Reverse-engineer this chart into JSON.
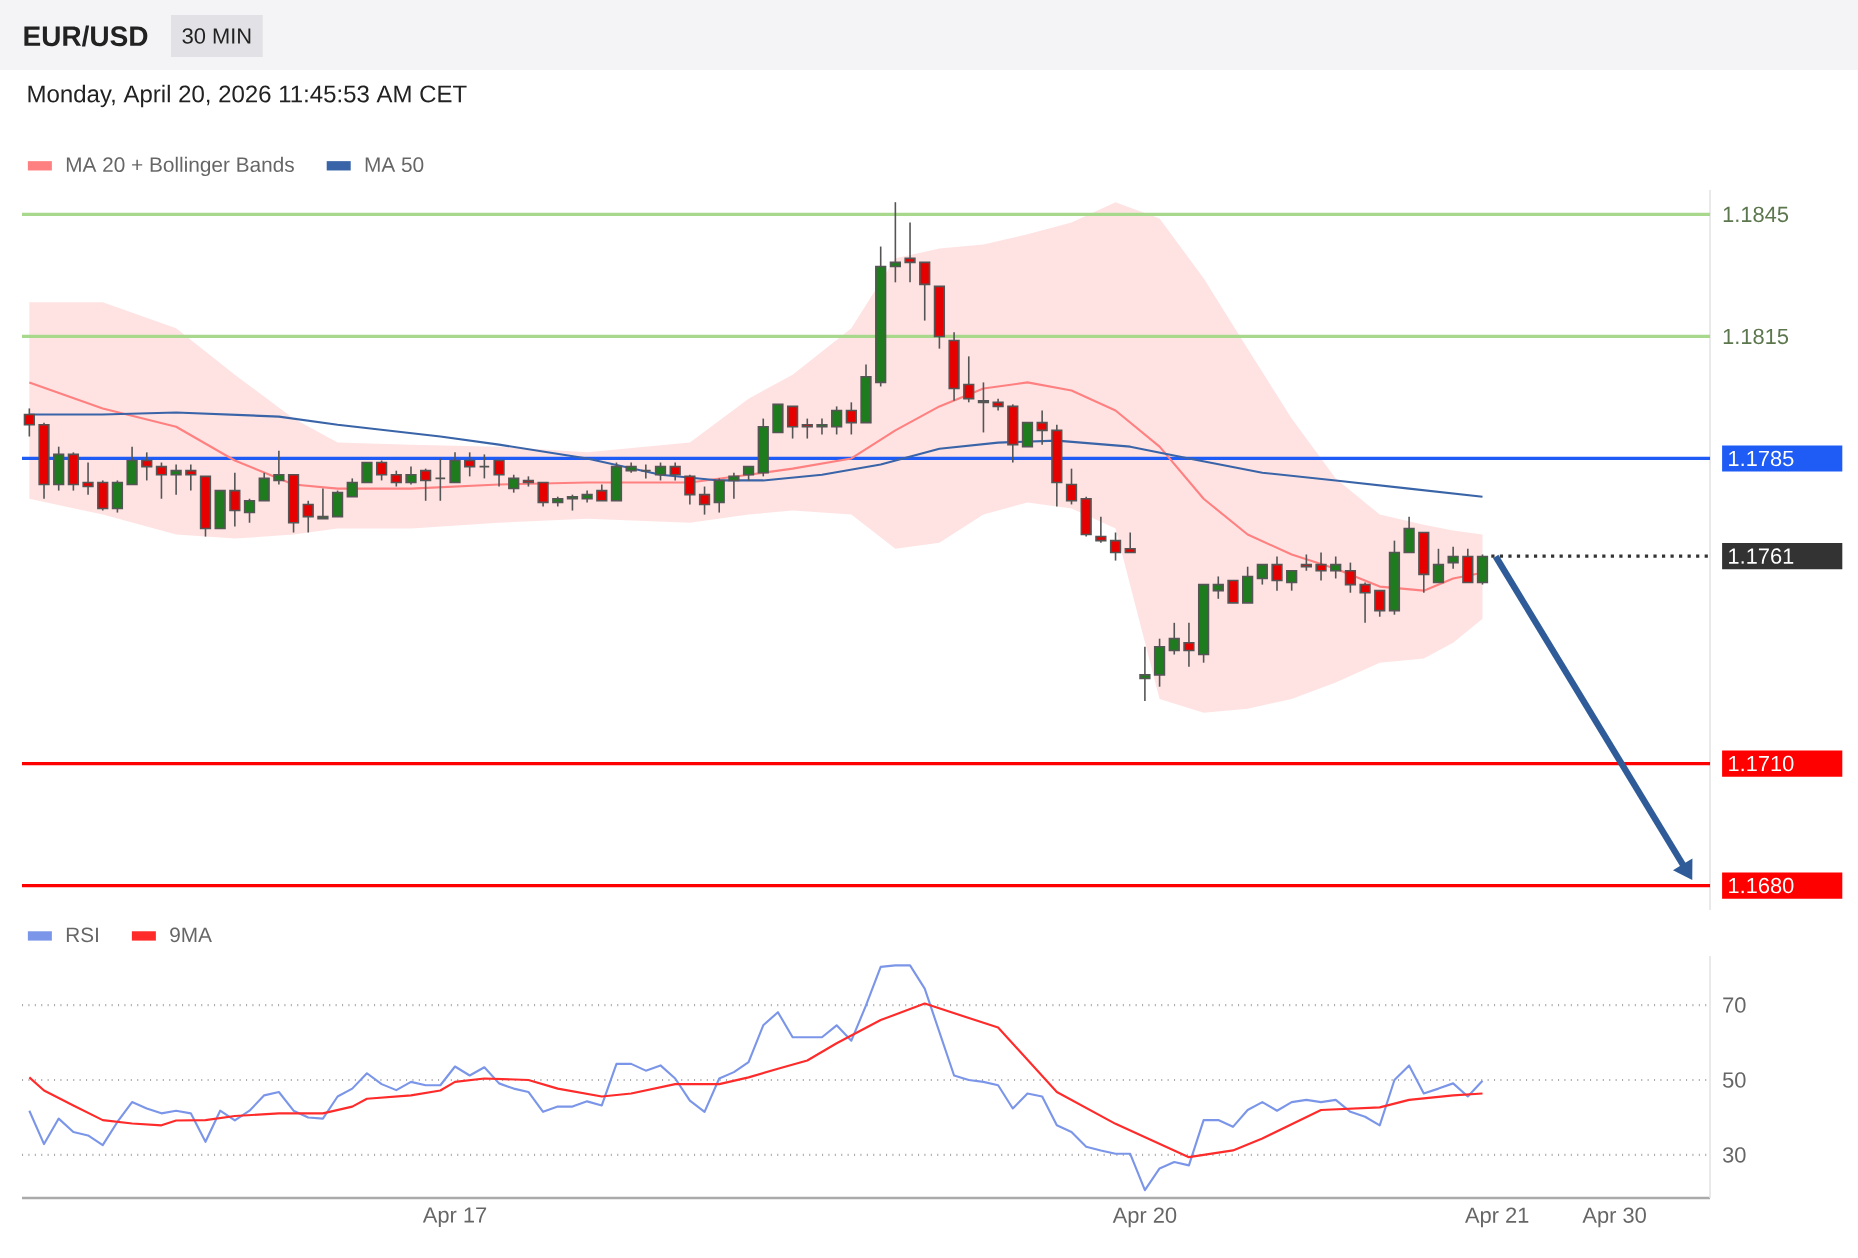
{
  "chart_data": [
    {
      "type": "candlestick",
      "title": "EUR/USD",
      "subtitle": "Monday, April 20, 2026 11:45:53 AM CET",
      "annotations": [
        "30 MIN"
      ],
      "categories": [
        null,
        null,
        null,
        null,
        null,
        null,
        null,
        null,
        null,
        null,
        null,
        null,
        null,
        null,
        null,
        null,
        null,
        null,
        null,
        null,
        null,
        null,
        null,
        null,
        null,
        null,
        null,
        null,
        null,
        null,
        null,
        null,
        null,
        null,
        null,
        null,
        null,
        null,
        null,
        null,
        null,
        null,
        null,
        null,
        null,
        null,
        null,
        null,
        null,
        null,
        null,
        null,
        null,
        null,
        null,
        null,
        null,
        null,
        null,
        null,
        null,
        null,
        null,
        null,
        null,
        null,
        null,
        null,
        null,
        null,
        null,
        null,
        null,
        null,
        null,
        null,
        null,
        null,
        null,
        null,
        null,
        null,
        null,
        null,
        null,
        null,
        null,
        null,
        null,
        null,
        null,
        null,
        null,
        null,
        null,
        null,
        null,
        null,
        null,
        null,
        null,
        null,
        null,
        null,
        null,
        null,
        null,
        null,
        null,
        null,
        null,
        null,
        null,
        null,
        null
      ],
      "ohlc": [
        [
          1.17958,
          1.17973,
          1.17904,
          1.17933
        ],
        [
          1.17933,
          1.17938,
          1.17751,
          1.17786
        ],
        [
          1.17786,
          1.17879,
          1.17771,
          1.1786
        ],
        [
          1.1786,
          1.17865,
          1.17771,
          1.17786
        ],
        [
          1.17791,
          1.1784,
          1.17761,
          1.17781
        ],
        [
          1.17791,
          1.17796,
          1.17722,
          1.17727
        ],
        [
          1.17727,
          1.17796,
          1.17717,
          1.17791
        ],
        [
          1.17786,
          1.17879,
          1.17786,
          1.17845
        ],
        [
          1.17845,
          1.17865,
          1.17796,
          1.1783
        ],
        [
          1.1783,
          1.1784,
          1.17751,
          1.1781
        ],
        [
          1.1781,
          1.17835,
          1.17761,
          1.1782
        ],
        [
          1.1782,
          1.17835,
          1.17771,
          1.1781
        ],
        [
          1.17806,
          1.17806,
          1.17658,
          1.17678
        ],
        [
          1.17678,
          1.17771,
          1.17678,
          1.17771
        ],
        [
          1.17771,
          1.17815,
          1.17683,
          1.17722
        ],
        [
          1.17717,
          1.17751,
          1.17692,
          1.17746
        ],
        [
          1.17746,
          1.17815,
          1.17746,
          1.17801
        ],
        [
          1.17796,
          1.17869,
          1.17786,
          1.1781
        ],
        [
          1.1781,
          1.1781,
          1.17668,
          1.17692
        ],
        [
          1.17737,
          1.17746,
          1.17668,
          1.17707
        ],
        [
          1.17702,
          1.17776,
          1.17702,
          1.17707
        ],
        [
          1.17707,
          1.17771,
          1.17707,
          1.17766
        ],
        [
          1.17756,
          1.17801,
          1.17756,
          1.17791
        ],
        [
          1.17791,
          1.1784,
          1.17791,
          1.1784
        ],
        [
          1.1784,
          1.17845,
          1.17796,
          1.1781
        ],
        [
          1.1781,
          1.1782,
          1.17781,
          1.17791
        ],
        [
          1.17791,
          1.1783,
          1.17786,
          1.1781
        ],
        [
          1.1782,
          1.17825,
          1.17746,
          1.17796
        ],
        [
          1.17801,
          1.1785,
          1.17746,
          1.17801
        ],
        [
          1.17791,
          1.17865,
          1.17791,
          1.17845
        ],
        [
          1.17845,
          1.17865,
          1.17806,
          1.1783
        ],
        [
          1.1783,
          1.1786,
          1.17801,
          1.1783
        ],
        [
          1.17845,
          1.17845,
          1.17781,
          1.1781
        ],
        [
          1.17776,
          1.1781,
          1.17766,
          1.17801
        ],
        [
          1.17796,
          1.17806,
          1.17781,
          1.17791
        ],
        [
          1.17791,
          1.17791,
          1.17732,
          1.17742
        ],
        [
          1.17742,
          1.17756,
          1.17732,
          1.17751
        ],
        [
          1.17751,
          1.17761,
          1.17722,
          1.17756
        ],
        [
          1.17751,
          1.17771,
          1.17742,
          1.17761
        ],
        [
          1.17771,
          1.17786,
          1.17746,
          1.17746
        ],
        [
          1.17746,
          1.1784,
          1.17746,
          1.1783
        ],
        [
          1.1782,
          1.1784,
          1.17815,
          1.1783
        ],
        [
          1.1782,
          1.17835,
          1.17801,
          1.1782
        ],
        [
          1.1781,
          1.1784,
          1.17796,
          1.1783
        ],
        [
          1.1783,
          1.1784,
          1.17796,
          1.1781
        ],
        [
          1.17806,
          1.1781,
          1.17737,
          1.17761
        ],
        [
          1.17761,
          1.17781,
          1.17712,
          1.17737
        ],
        [
          1.17742,
          1.17801,
          1.17717,
          1.17796
        ],
        [
          1.17796,
          1.17815,
          1.17751,
          1.17806
        ],
        [
          1.1781,
          1.1783,
          1.17796,
          1.1783
        ],
        [
          1.17815,
          1.17948,
          1.17806,
          1.17928
        ],
        [
          1.17914,
          1.17983,
          1.17914,
          1.17983
        ],
        [
          1.17978,
          1.17978,
          1.17899,
          1.17928
        ],
        [
          1.17933,
          1.17948,
          1.17899,
          1.17928
        ],
        [
          1.17928,
          1.17948,
          1.17909,
          1.17933
        ],
        [
          1.17928,
          1.17978,
          1.17909,
          1.17968
        ],
        [
          1.17968,
          1.17988,
          1.17909,
          1.17938
        ],
        [
          1.17938,
          1.18081,
          1.17938,
          1.18051
        ],
        [
          1.18037,
          1.18371,
          1.18027,
          1.18322
        ],
        [
          1.18322,
          1.1848,
          1.18283,
          1.18332
        ],
        [
          1.18342,
          1.1843,
          1.18283,
          1.18332
        ],
        [
          1.18332,
          1.18332,
          1.18189,
          1.18278
        ],
        [
          1.18273,
          1.18273,
          1.1812,
          1.1815
        ],
        [
          1.1814,
          1.1816,
          1.17992,
          1.18022
        ],
        [
          1.18032,
          1.18101,
          1.17988,
          1.17997
        ],
        [
          1.17992,
          1.18037,
          1.17914,
          1.17988
        ],
        [
          1.17988,
          1.17997,
          1.17968,
          1.17978
        ],
        [
          1.17978,
          1.17983,
          1.1784,
          1.17884
        ],
        [
          1.17879,
          1.17938,
          1.17879,
          1.17938
        ],
        [
          1.17938,
          1.17968,
          1.17884,
          1.17919
        ],
        [
          1.17919,
          1.17933,
          1.17732,
          1.17791
        ],
        [
          1.17786,
          1.17825,
          1.17737,
          1.17746
        ],
        [
          1.17751,
          1.17756,
          1.17658,
          1.17663
        ],
        [
          1.17658,
          1.17707,
          1.17643,
          1.17648
        ],
        [
          1.17648,
          1.17668,
          1.17599,
          1.17619
        ],
        [
          1.17628,
          1.17668,
          1.17619,
          1.17619
        ],
        [
          1.17309,
          1.17387,
          1.17254,
          1.17318
        ],
        [
          1.17318,
          1.17407,
          1.17289,
          1.17387
        ],
        [
          1.17378,
          1.17446,
          1.17368,
          1.17407
        ],
        [
          1.17397,
          1.17446,
          1.17338,
          1.17378
        ],
        [
          1.17368,
          1.1754,
          1.17348,
          1.1754
        ],
        [
          1.17525,
          1.1756,
          1.17505,
          1.1754
        ],
        [
          1.1755,
          1.1755,
          1.17495,
          1.17495
        ],
        [
          1.17495,
          1.17584,
          1.17495,
          1.1756
        ],
        [
          1.17555,
          1.17589,
          1.1754,
          1.17589
        ],
        [
          1.17589,
          1.17609,
          1.17525,
          1.1755
        ],
        [
          1.17545,
          1.17574,
          1.17525,
          1.17574
        ],
        [
          1.17589,
          1.17614,
          1.17574,
          1.17584
        ],
        [
          1.17589,
          1.17619,
          1.1755,
          1.17574
        ],
        [
          1.17574,
          1.17609,
          1.17555,
          1.17589
        ],
        [
          1.17574,
          1.17594,
          1.1752,
          1.1754
        ],
        [
          1.1754,
          1.17545,
          1.17446,
          1.1752
        ],
        [
          1.17525,
          1.17525,
          1.17461,
          1.17476
        ],
        [
          1.17476,
          1.17648,
          1.17466,
          1.17619
        ],
        [
          1.17619,
          1.17707,
          1.17619,
          1.17678
        ],
        [
          1.17668,
          1.17668,
          1.1752,
          1.17565
        ],
        [
          1.17545,
          1.17628,
          1.17545,
          1.17589
        ],
        [
          1.17594,
          1.17633,
          1.17579,
          1.17609
        ],
        [
          1.17609,
          1.17628,
          1.17545,
          1.17545
        ],
        [
          1.17545,
          1.17614,
          1.1754,
          1.17609
        ],
        null,
        null,
        null,
        null,
        null,
        null,
        null,
        null,
        null,
        null,
        null,
        null,
        null,
        null,
        null
      ],
      "series": [
        {
          "name": "MA 20 + Bollinger Bands",
          "type": "line",
          "color": "#ff8080",
          "values": [
            1.18037,
            null,
            null,
            null,
            null,
            1.17973,
            null,
            null,
            null,
            null,
            1.17928,
            null,
            null,
            null,
            1.17845,
            null,
            null,
            null,
            1.17786,
            null,
            null,
            1.17776,
            null,
            null,
            null,
            null,
            1.17776,
            null,
            null,
            null,
            null,
            null,
            1.17786,
            null,
            null,
            null,
            null,
            null,
            1.17791,
            null,
            null,
            null,
            null,
            null,
            null,
            1.17791,
            null,
            null,
            null,
            1.1781,
            null,
            null,
            1.17825,
            null,
            null,
            null,
            1.1785,
            null,
            null,
            1.17919,
            null,
            null,
            1.17978,
            null,
            null,
            1.18022,
            null,
            null,
            1.18037,
            null,
            null,
            1.18017,
            null,
            null,
            1.17968,
            null,
            null,
            1.17879,
            null,
            null,
            1.17751,
            null,
            null,
            1.17663,
            null,
            null,
            1.17614,
            null,
            null,
            1.17579,
            null,
            null,
            1.17535,
            null,
            null,
            1.17525,
            null,
            1.17555,
            null,
            1.17569,
            null,
            null,
            null,
            null,
            null,
            null,
            null,
            null,
            null,
            null,
            null,
            null,
            null,
            null,
            null
          ],
          "upper": [
            1.18234,
            null,
            null,
            null,
            null,
            1.18234,
            null,
            null,
            null,
            null,
            1.1817,
            null,
            null,
            null,
            1.18056,
            null,
            null,
            null,
            1.17948,
            null,
            null,
            1.17889,
            null,
            null,
            null,
            null,
            1.17884,
            null,
            null,
            null,
            null,
            null,
            1.17879,
            null,
            null,
            null,
            null,
            null,
            1.17865,
            null,
            null,
            null,
            null,
            null,
            null,
            1.17889,
            null,
            null,
            null,
            1.17997,
            null,
            null,
            1.18056,
            null,
            null,
            null,
            1.1817,
            null,
            null,
            1.18342,
            null,
            null,
            1.18366,
            null,
            null,
            1.18376,
            null,
            null,
            1.18401,
            null,
            null,
            1.1843,
            null,
            null,
            1.1848,
            null,
            null,
            1.1844,
            null,
            null,
            1.18293,
            null,
            null,
            1.1812,
            null,
            null,
            1.17948,
            null,
            null,
            1.17801,
            null,
            null,
            1.17712,
            null,
            null,
            1.17687,
            null,
            1.17673,
            null,
            1.17663,
            null,
            null,
            null,
            null,
            null,
            null,
            null,
            null,
            null,
            null,
            null,
            null,
            null,
            null,
            null
          ],
          "lower": [
            1.17751,
            null,
            null,
            null,
            null,
            1.17712,
            null,
            null,
            null,
            null,
            1.17663,
            null,
            null,
            null,
            1.17653,
            null,
            null,
            null,
            1.17663,
            null,
            null,
            1.17678,
            null,
            null,
            null,
            null,
            1.17678,
            null,
            null,
            null,
            null,
            null,
            1.17692,
            null,
            null,
            null,
            null,
            null,
            1.17702,
            null,
            null,
            null,
            null,
            null,
            null,
            1.17692,
            null,
            null,
            null,
            1.17712,
            null,
            null,
            1.17722,
            null,
            null,
            null,
            1.17712,
            null,
            null,
            1.17628,
            null,
            null,
            1.17643,
            null,
            null,
            1.17712,
            null,
            null,
            1.17742,
            null,
            null,
            1.17727,
            null,
            null,
            1.17678,
            null,
            null,
            1.17259,
            null,
            null,
            1.17225,
            null,
            null,
            1.17235,
            null,
            null,
            1.17259,
            null,
            null,
            1.17299,
            null,
            null,
            1.17348,
            null,
            null,
            1.17358,
            null,
            1.17397,
            null,
            1.17456,
            null,
            null,
            null,
            null,
            null,
            null,
            null,
            null,
            null,
            null,
            null,
            null,
            null,
            null,
            null
          ]
        },
        {
          "name": "MA 50",
          "type": "line",
          "color": "#3a64a8",
          "values": [
            1.17958,
            null,
            null,
            null,
            null,
            1.17958,
            null,
            null,
            null,
            null,
            1.17963,
            null,
            null,
            null,
            null,
            null,
            null,
            1.17953,
            null,
            null,
            null,
            1.17933,
            null,
            null,
            null,
            null,
            null,
            null,
            1.17904,
            null,
            null,
            null,
            1.17884,
            null,
            null,
            null,
            null,
            null,
            1.1785,
            null,
            null,
            null,
            null,
            1.1781,
            null,
            null,
            null,
            1.17796,
            null,
            null,
            1.17796,
            null,
            null,
            null,
            1.1781,
            null,
            null,
            null,
            1.17835,
            null,
            null,
            null,
            1.17874,
            null,
            null,
            null,
            1.17889,
            null,
            null,
            null,
            1.17894,
            null,
            null,
            null,
            null,
            1.17879,
            null,
            null,
            null,
            1.1785,
            null,
            null,
            null,
            null,
            1.17815,
            null,
            null,
            null,
            null,
            1.17796,
            null,
            null,
            null,
            null,
            1.17776,
            null,
            null,
            null,
            null,
            1.17756,
            null,
            null,
            null,
            null,
            null,
            null,
            null,
            null,
            null,
            null,
            null,
            null,
            null,
            null,
            null
          ]
        }
      ],
      "ref_lines": [
        {
          "axis": "y",
          "value": 1.1845,
          "color": "#a8d88c",
          "line_style": "solid"
        },
        {
          "axis": "y",
          "value": 1.1815,
          "color": "#a8d88c",
          "line_style": "solid"
        },
        {
          "axis": "y",
          "value": 1.1785,
          "color": "#1f5cf5",
          "line_style": "solid"
        },
        {
          "axis": "y",
          "value": 1.1761,
          "color": "#333333",
          "line_style": "dotted"
        },
        {
          "axis": "y",
          "value": 1.171,
          "color": "#ff0000",
          "line_style": "solid"
        },
        {
          "axis": "y",
          "value": 1.168,
          "color": "#ff0000",
          "line_style": "solid"
        }
      ],
      "ylim": [
        1.1674,
        1.1851
      ],
      "yticks": [
        {
          "value": 1.168,
          "label": "1.1680"
        },
        {
          "value": 1.171,
          "label": "1.1710"
        },
        {
          "value": 1.1761,
          "label": "1.1761"
        },
        {
          "value": 1.1785,
          "label": "1.1785"
        },
        {
          "value": 1.1815,
          "label": "1.1815"
        },
        {
          "value": 1.1845,
          "label": "1.1845"
        }
      ],
      "legend": "top left",
      "tick_labels": "y"
    },
    {
      "type": "line",
      "categories": [
        null,
        null,
        null,
        null,
        null,
        null,
        null,
        null,
        null,
        null,
        null,
        null,
        null,
        null,
        null,
        null,
        null,
        null,
        null,
        null,
        null,
        null,
        null,
        null,
        null,
        null,
        null,
        null,
        null,
        "Apr 17",
        null,
        null,
        null,
        null,
        null,
        null,
        null,
        null,
        null,
        null,
        null,
        null,
        null,
        null,
        null,
        null,
        null,
        null,
        null,
        null,
        null,
        null,
        null,
        null,
        null,
        null,
        null,
        null,
        null,
        null,
        null,
        null,
        null,
        null,
        null,
        null,
        null,
        null,
        null,
        null,
        null,
        null,
        null,
        null,
        null,
        null,
        "Apr 20",
        null,
        null,
        null,
        null,
        null,
        null,
        null,
        null,
        null,
        null,
        null,
        null,
        null,
        null,
        null,
        null,
        null,
        null,
        null,
        null,
        null,
        null,
        null,
        "Apr 21",
        null,
        null,
        null,
        null,
        null,
        null,
        null,
        "Apr 30",
        null,
        null,
        null,
        null,
        null,
        null
      ],
      "series": [
        {
          "name": "RSI",
          "color": "#7b96e8",
          "values": [
            41.8,
            32.9,
            39.7,
            36.1,
            35.2,
            32.6,
            38.8,
            44.1,
            42.4,
            41.1,
            41.8,
            41.1,
            33.5,
            41.8,
            39.2,
            41.8,
            45.9,
            46.8,
            41.8,
            40.0,
            39.7,
            45.6,
            47.7,
            51.8,
            48.9,
            47.3,
            49.5,
            48.6,
            48.6,
            53.6,
            51.2,
            53.4,
            49.1,
            47.7,
            46.8,
            41.5,
            42.9,
            42.9,
            44.3,
            43.2,
            54.3,
            54.3,
            52.5,
            53.9,
            50.4,
            44.5,
            41.5,
            50.4,
            52.1,
            54.8,
            64.6,
            68.1,
            61.4,
            61.4,
            61.4,
            64.6,
            60.5,
            69.9,
            80.2,
            80.6,
            80.6,
            74.4,
            62.8,
            51.2,
            50.0,
            49.5,
            48.6,
            42.4,
            46.4,
            45.6,
            37.9,
            36.1,
            32.2,
            31.2,
            30.3,
            30.3,
            20.6,
            26.4,
            28.1,
            27.2,
            39.3,
            39.3,
            37.5,
            42.0,
            44.1,
            41.8,
            44.1,
            44.7,
            44.1,
            44.7,
            41.5,
            40.2,
            37.9,
            50.0,
            53.9,
            46.4,
            47.7,
            49.1,
            45.6,
            49.8,
            null,
            null,
            null,
            null,
            null,
            null,
            null,
            null,
            null,
            null,
            null,
            null,
            null,
            null,
            null
          ]
        },
        {
          "name": "9MA",
          "color": "#ff2a2a",
          "values": [
            50.7,
            47.2,
            null,
            43.2,
            null,
            39.3,
            null,
            38.4,
            null,
            37.9,
            39.2,
            null,
            39.3,
            null,
            40.4,
            null,
            null,
            41.1,
            null,
            null,
            41.1,
            null,
            42.9,
            45.0,
            null,
            null,
            45.9,
            null,
            47.2,
            49.5,
            null,
            50.4,
            null,
            null,
            50.0,
            null,
            47.7,
            null,
            null,
            45.6,
            null,
            46.4,
            null,
            null,
            48.9,
            null,
            null,
            48.9,
            null,
            50.7,
            null,
            53.0,
            null,
            55.2,
            null,
            59.8,
            null,
            null,
            66.0,
            null,
            null,
            70.4,
            null,
            null,
            null,
            null,
            64.0,
            null,
            null,
            null,
            46.8,
            null,
            null,
            null,
            38.3,
            null,
            null,
            null,
            null,
            29.4,
            null,
            null,
            31.2,
            null,
            34.4,
            null,
            null,
            null,
            42.0,
            null,
            null,
            null,
            42.7,
            null,
            44.7,
            null,
            null,
            45.9,
            null,
            46.4,
            null,
            null,
            null,
            null,
            null,
            null,
            null,
            null,
            null,
            null,
            null,
            null,
            null,
            null,
            null
          ]
        }
      ],
      "ylim": [
        18.5,
        83.1
      ],
      "yticks": [
        30,
        50,
        70
      ],
      "grid": "y",
      "legend": "top left"
    }
  ]
}
